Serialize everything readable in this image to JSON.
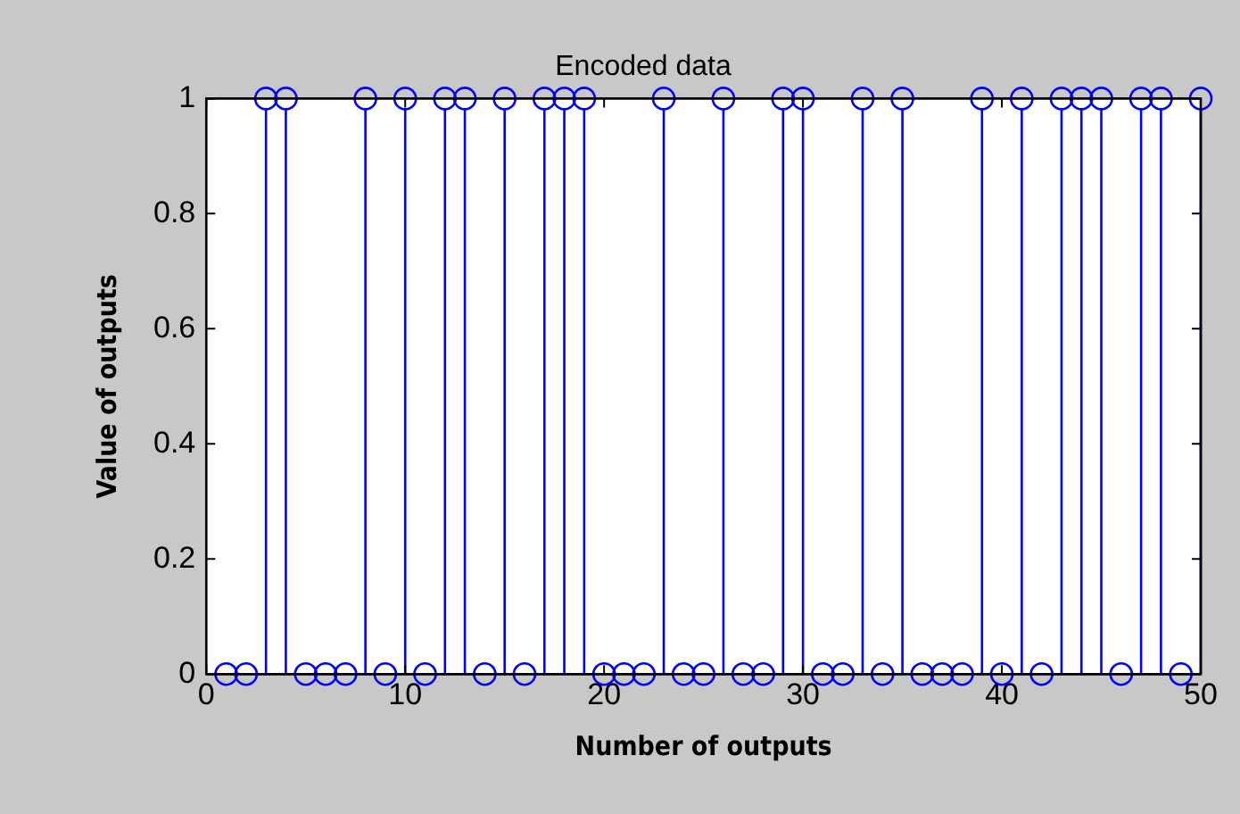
{
  "chart_data": {
    "type": "lollipop",
    "title": "Encoded data",
    "xlabel": "Number of outputs",
    "ylabel": "Value of outputs",
    "x": [
      1,
      2,
      3,
      4,
      5,
      6,
      7,
      8,
      9,
      10,
      11,
      12,
      13,
      14,
      15,
      16,
      17,
      18,
      19,
      20,
      21,
      22,
      23,
      24,
      25,
      26,
      27,
      28,
      29,
      30,
      31,
      32,
      33,
      34,
      35,
      36,
      37,
      38,
      39,
      40,
      41,
      42,
      43,
      44,
      45,
      46,
      47,
      48,
      49,
      50
    ],
    "series": [
      {
        "color": "#0000ff",
        "values": [
          0,
          0,
          1,
          1,
          0,
          0,
          0,
          1,
          0,
          1,
          0,
          1,
          1,
          0,
          1,
          0,
          1,
          1,
          1,
          0,
          0,
          0,
          1,
          0,
          0,
          1,
          0,
          0,
          1,
          1,
          0,
          0,
          1,
          0,
          1,
          0,
          0,
          0,
          1,
          0,
          1,
          0,
          1,
          1,
          1,
          0,
          1,
          1,
          0,
          1
        ]
      }
    ],
    "xlim": [
      0,
      50
    ],
    "xticks": [
      0,
      10,
      20,
      30,
      40,
      50
    ],
    "ylim": [
      0,
      1
    ],
    "yticks": [
      0,
      0.2,
      0.4,
      0.6,
      0.8,
      1
    ],
    "marker": "circle",
    "legend": false
  }
}
